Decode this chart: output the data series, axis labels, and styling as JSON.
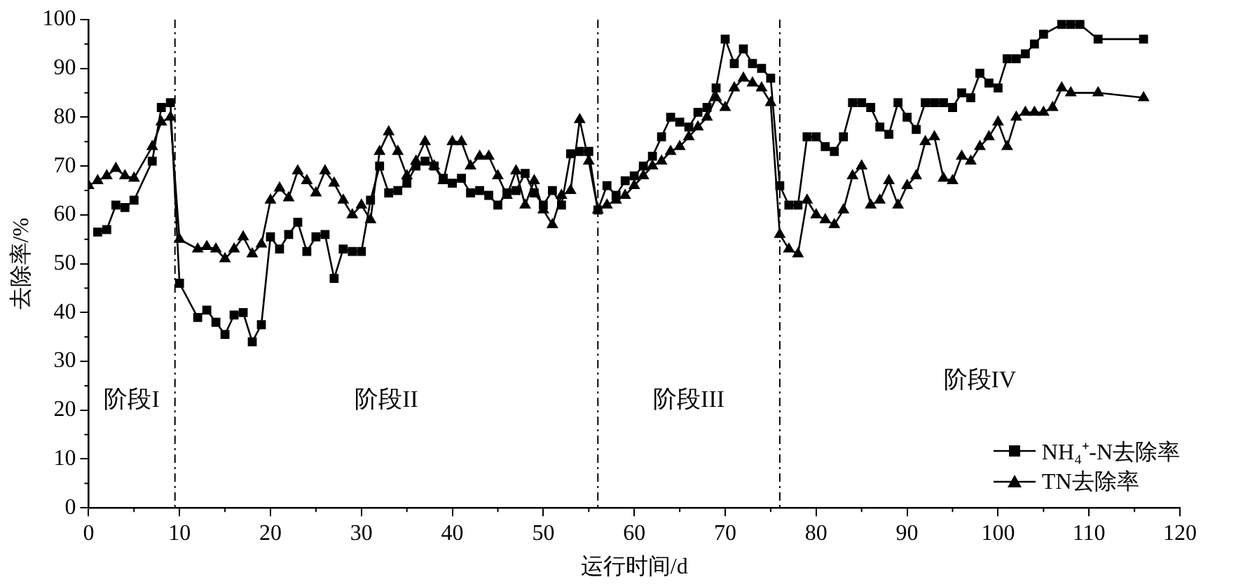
{
  "chart_data": {
    "type": "line",
    "xlabel": "运行时间/d",
    "ylabel": "去除率/%",
    "xlim": [
      0,
      120
    ],
    "xticks": [
      0,
      10,
      20,
      30,
      40,
      50,
      60,
      70,
      80,
      90,
      100,
      110,
      120
    ],
    "ylim": [
      0,
      100
    ],
    "yticks": [
      0,
      10,
      20,
      30,
      40,
      50,
      60,
      70,
      80,
      90,
      100
    ],
    "grid": false,
    "legend": "bottom right",
    "line_style": "solid",
    "series": [
      {
        "name": "NH₄⁺-N去除率",
        "color": "#000000",
        "marker": "square",
        "x": [
          1,
          2,
          3,
          4,
          5,
          7,
          8,
          9,
          10,
          12,
          13,
          14,
          15,
          16,
          17,
          18,
          19,
          20,
          21,
          22,
          23,
          24,
          25,
          26,
          27,
          28,
          29,
          30,
          31,
          32,
          33,
          34,
          35,
          36,
          37,
          38,
          39,
          40,
          41,
          42,
          43,
          44,
          45,
          46,
          47,
          48,
          49,
          50,
          51,
          52,
          53,
          54,
          55,
          56,
          57,
          58,
          59,
          60,
          61,
          62,
          63,
          64,
          65,
          66,
          67,
          68,
          69,
          70,
          71,
          72,
          73,
          74,
          75,
          76,
          77,
          78,
          79,
          80,
          81,
          82,
          83,
          84,
          85,
          86,
          87,
          88,
          89,
          90,
          91,
          92,
          93,
          94,
          95,
          96,
          97,
          98,
          99,
          100,
          101,
          102,
          103,
          104,
          105,
          107,
          108,
          109,
          111,
          116
        ],
        "values": [
          56.5,
          57,
          62,
          61.5,
          63,
          71,
          82,
          83,
          46,
          39,
          40.5,
          38,
          35.5,
          39.5,
          40,
          34,
          37.5,
          55.5,
          53,
          56,
          58.5,
          52.5,
          55.5,
          56,
          47,
          53,
          52.5,
          52.5,
          63,
          70,
          64.5,
          65,
          66.5,
          70,
          71,
          70,
          67.5,
          66.5,
          67.5,
          64.5,
          65,
          64,
          62,
          64.5,
          65,
          68.5,
          64.5,
          62,
          65,
          62,
          72.5,
          73,
          73,
          61,
          66,
          64,
          67,
          68,
          70,
          72,
          76,
          80,
          79,
          78,
          81,
          82,
          86,
          96,
          91,
          94,
          91,
          90,
          88,
          66,
          62,
          62,
          76,
          76,
          74,
          73,
          76,
          83,
          83,
          82,
          78,
          76.5,
          83,
          80,
          77.5,
          83,
          83,
          83,
          82,
          85,
          84,
          89,
          87,
          86,
          92,
          92,
          93,
          95,
          97,
          99,
          99,
          99,
          96,
          96
        ]
      },
      {
        "name": "TN去除率",
        "color": "#000000",
        "marker": "triangle",
        "x": [
          0,
          1,
          2,
          3,
          4,
          5,
          7,
          8,
          9,
          10,
          12,
          13,
          14,
          15,
          16,
          17,
          18,
          19,
          20,
          21,
          22,
          23,
          24,
          25,
          26,
          27,
          28,
          29,
          30,
          31,
          32,
          33,
          34,
          35,
          36,
          37,
          38,
          39,
          40,
          41,
          42,
          43,
          44,
          45,
          46,
          47,
          48,
          49,
          50,
          51,
          52,
          53,
          54,
          55,
          56,
          57,
          58,
          59,
          60,
          61,
          62,
          63,
          64,
          65,
          66,
          67,
          68,
          69,
          70,
          71,
          72,
          73,
          74,
          75,
          76,
          77,
          78,
          79,
          80,
          81,
          82,
          83,
          84,
          85,
          86,
          87,
          88,
          89,
          90,
          91,
          92,
          93,
          94,
          95,
          96,
          97,
          98,
          99,
          100,
          101,
          102,
          103,
          104,
          105,
          106,
          107,
          108,
          111,
          116
        ],
        "values": [
          66,
          67,
          68,
          69.5,
          68,
          67.5,
          74,
          79,
          80,
          55,
          53,
          53.5,
          53,
          51,
          53,
          55.5,
          52,
          54,
          63,
          65.5,
          63.5,
          69,
          67,
          64.5,
          69,
          66.5,
          63,
          60,
          62,
          59,
          73,
          77,
          73,
          68,
          71,
          75,
          70,
          67,
          75,
          75,
          70,
          72,
          72,
          68,
          64,
          69,
          62,
          67,
          61,
          58,
          64,
          65,
          79.5,
          71,
          61,
          62,
          63,
          64,
          66,
          68,
          70,
          71,
          73,
          74,
          76,
          78,
          80,
          84,
          82,
          86,
          88,
          87,
          86,
          83,
          56,
          53,
          52,
          63,
          60,
          59,
          58,
          61,
          68,
          70,
          62,
          63,
          67,
          62,
          66,
          68,
          75,
          76,
          67.5,
          67,
          72,
          71,
          74,
          76,
          79,
          74,
          80,
          81,
          81,
          81,
          82,
          86,
          85,
          85,
          84
        ]
      }
    ],
    "ref_lines": [
      {
        "axis": "x",
        "value": 9.5,
        "line_style": "dashdot",
        "color": "#000000"
      },
      {
        "axis": "x",
        "value": 56,
        "line_style": "dashdot",
        "color": "#000000"
      },
      {
        "axis": "x",
        "value": 76,
        "line_style": "dashdot",
        "color": "#000000"
      }
    ],
    "annotations": [
      "阶段I",
      "阶段II",
      "阶段III",
      "阶段IV"
    ]
  }
}
